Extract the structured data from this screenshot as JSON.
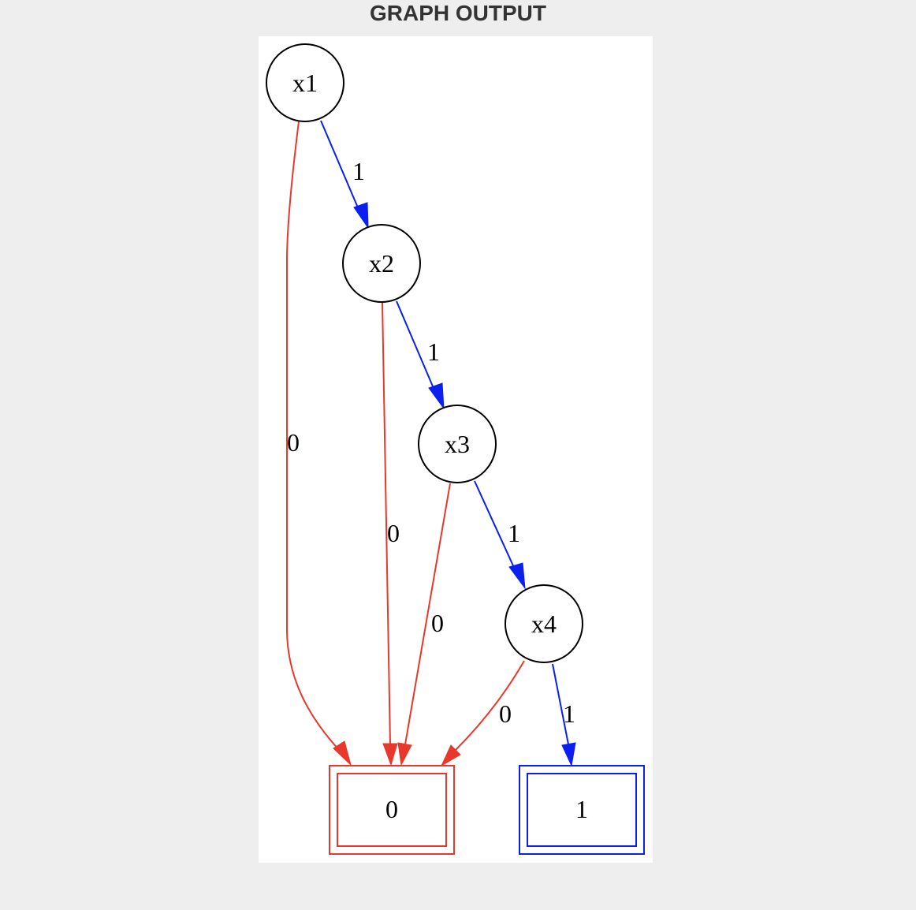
{
  "header": {
    "title": "GRAPH OUTPUT"
  },
  "colors": {
    "zero_edge": "#e8382b",
    "one_edge": "#0a1ff0",
    "node_stroke": "#000000",
    "background": "#eeeeee",
    "canvas": "#ffffff"
  },
  "graph": {
    "nodes": [
      {
        "id": "x1",
        "label": "x1"
      },
      {
        "id": "x2",
        "label": "x2"
      },
      {
        "id": "x3",
        "label": "x3"
      },
      {
        "id": "x4",
        "label": "x4"
      }
    ],
    "terminals": [
      {
        "id": "t0",
        "label": "0"
      },
      {
        "id": "t1",
        "label": "1"
      }
    ],
    "edges": [
      {
        "from": "x1",
        "to": "x2",
        "label": "1"
      },
      {
        "from": "x1",
        "to": "t0",
        "label": "0"
      },
      {
        "from": "x2",
        "to": "x3",
        "label": "1"
      },
      {
        "from": "x2",
        "to": "t0",
        "label": "0"
      },
      {
        "from": "x3",
        "to": "x4",
        "label": "1"
      },
      {
        "from": "x3",
        "to": "t0",
        "label": "0"
      },
      {
        "from": "x4",
        "to": "t1",
        "label": "1"
      },
      {
        "from": "x4",
        "to": "t0",
        "label": "0"
      }
    ]
  }
}
